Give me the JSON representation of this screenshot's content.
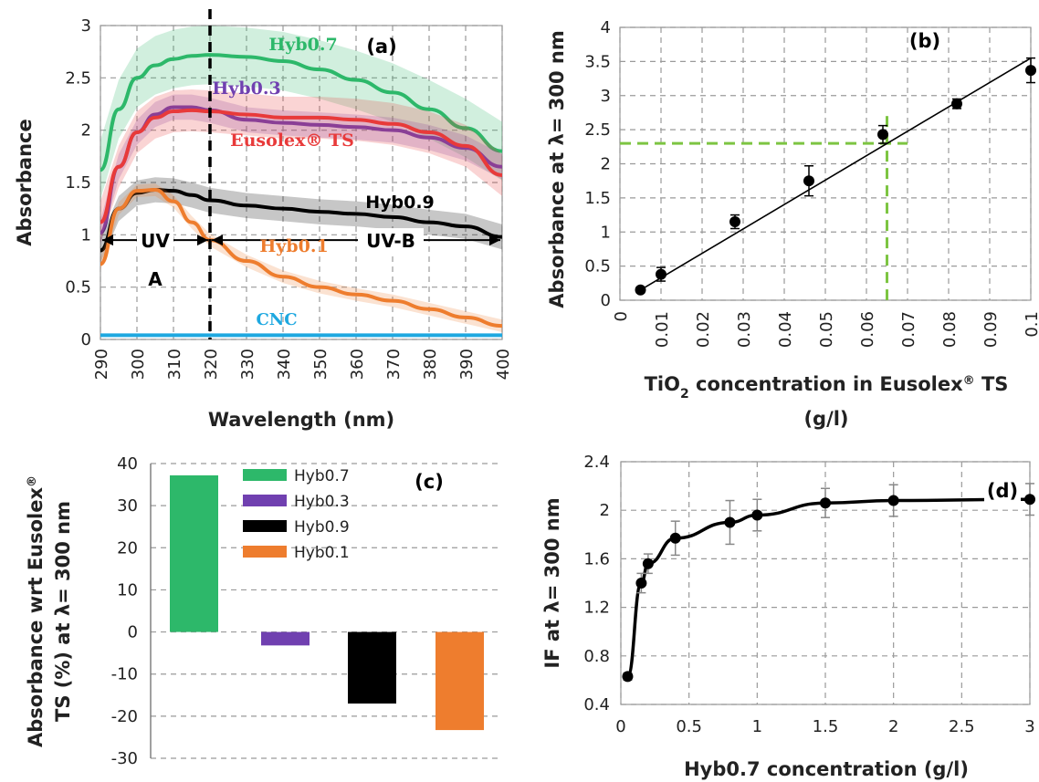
{
  "colors": {
    "hyb07": "#2db86a",
    "hyb03": "#7040b0",
    "eusolex": "#e83a3a",
    "hyb09": "#000000",
    "hyb01": "#ee7d2e",
    "cnc": "#1ea8e0",
    "guide": "#7dc542"
  },
  "chart_data": [
    {
      "panel": "(a)",
      "type": "line",
      "xlabel": "Wavelength (nm)",
      "ylabel": "Absorbance",
      "xlim": [
        290,
        400
      ],
      "ylim": [
        0,
        3
      ],
      "xticks": [
        "290",
        "300",
        "310",
        "320",
        "330",
        "340",
        "350",
        "360",
        "370",
        "380",
        "390",
        "400"
      ],
      "yticks": [
        "0",
        "0.5",
        "1",
        "1.5",
        "2",
        "2.5",
        "3"
      ],
      "grid": true,
      "x": [
        290,
        295,
        300,
        305,
        310,
        315,
        320,
        330,
        340,
        350,
        360,
        370,
        380,
        390,
        400
      ],
      "series": [
        {
          "name": "Hyb0.7",
          "color": "hyb07",
          "values": [
            1.62,
            2.2,
            2.5,
            2.62,
            2.68,
            2.71,
            2.72,
            2.7,
            2.66,
            2.58,
            2.48,
            2.36,
            2.2,
            2.02,
            1.8
          ]
        },
        {
          "name": "Hyb0.3",
          "color": "hyb03",
          "values": [
            1.02,
            1.65,
            1.98,
            2.15,
            2.22,
            2.22,
            2.19,
            2.1,
            2.07,
            2.05,
            2.03,
            2.0,
            1.93,
            1.83,
            1.65
          ]
        },
        {
          "name": "Eusolex® TS",
          "color": "eusolex",
          "values": [
            1.12,
            1.65,
            1.98,
            2.12,
            2.18,
            2.19,
            2.18,
            2.15,
            2.12,
            2.12,
            2.1,
            2.06,
            1.98,
            1.85,
            1.57
          ]
        },
        {
          "name": "Hyb0.9",
          "color": "hyb09",
          "values": [
            0.85,
            1.25,
            1.4,
            1.43,
            1.42,
            1.38,
            1.33,
            1.28,
            1.25,
            1.22,
            1.2,
            1.17,
            1.12,
            1.08,
            0.98
          ]
        },
        {
          "name": "Hyb0.1",
          "color": "hyb01",
          "values": [
            0.72,
            1.25,
            1.42,
            1.43,
            1.32,
            1.12,
            0.95,
            0.75,
            0.6,
            0.5,
            0.43,
            0.37,
            0.29,
            0.21,
            0.13
          ]
        },
        {
          "name": "CNC",
          "color": "cnc",
          "values": [
            0.04,
            0.04,
            0.04,
            0.04,
            0.04,
            0.04,
            0.04,
            0.04,
            0.04,
            0.04,
            0.04,
            0.04,
            0.04,
            0.04,
            0.04
          ]
        }
      ],
      "divider_x": 320,
      "annotations": {
        "uva_label": "UV",
        "uva_label2": "A",
        "uvb_label": "UV-B"
      }
    },
    {
      "panel": "(b)",
      "type": "scatter",
      "xlabel_main": "TiO",
      "xlabel_sub": "2",
      "xlabel_rest": " concentration in Eusolex",
      "xlabel_sup": "®",
      "xlabel_end": " TS",
      "xlabel_line2": "(g/l)",
      "ylabel": "Absorbance at λ= 300 nm",
      "xlim": [
        0,
        0.1
      ],
      "ylim": [
        0,
        4
      ],
      "xticks": [
        "0",
        "0.01",
        "0.02",
        "0.03",
        "0.04",
        "0.05",
        "0.06",
        "0.07",
        "0.08",
        "0.09",
        "0.1"
      ],
      "yticks": [
        "0",
        "0.5",
        "1",
        "1.5",
        "2",
        "2.5",
        "3",
        "3.5",
        "4"
      ],
      "points": [
        {
          "x": 0.005,
          "y": 0.15,
          "err": 0.04
        },
        {
          "x": 0.01,
          "y": 0.38,
          "err": 0.1
        },
        {
          "x": 0.028,
          "y": 1.15,
          "err": 0.1
        },
        {
          "x": 0.046,
          "y": 1.75,
          "err": 0.22
        },
        {
          "x": 0.064,
          "y": 2.43,
          "err": 0.13
        },
        {
          "x": 0.082,
          "y": 2.88,
          "err": 0.07
        },
        {
          "x": 0.1,
          "y": 3.37,
          "err": 0.18
        }
      ],
      "fit": {
        "x": [
          0.005,
          0.1
        ],
        "y": [
          0.15,
          3.55
        ]
      },
      "guide": {
        "x": 0.065,
        "y": 2.3
      }
    },
    {
      "panel": "(c)",
      "type": "bar",
      "ylabel_line1": "Absorbance wrt Eusolex",
      "ylabel_sup": "®",
      "ylabel_line2": "TS (%) at λ= 300 nm",
      "ylim": [
        -30,
        40
      ],
      "yticks": [
        "-30",
        "-20",
        "-10",
        "0",
        "10",
        "20",
        "30",
        "40"
      ],
      "categories": [
        "Hyb0.7",
        "Hyb0.3",
        "Hyb0.9",
        "Hyb0.1"
      ],
      "values": [
        37.2,
        -3.2,
        -17.0,
        -23.3
      ],
      "colors": [
        "hyb07",
        "hyb03",
        "hyb09",
        "hyb01"
      ]
    },
    {
      "panel": "(d)",
      "type": "line",
      "xlabel": "Hyb0.7 concentration (g/l)",
      "ylabel": "IF at λ= 300 nm",
      "xlim": [
        0,
        3
      ],
      "ylim": [
        0.4,
        2.4
      ],
      "xticks": [
        "0",
        "0.5",
        "1",
        "1.5",
        "2",
        "2.5",
        "3"
      ],
      "yticks": [
        "0.4",
        "0.8",
        "1.2",
        "1.6",
        "2",
        "2.4"
      ],
      "points": [
        {
          "x": 0.05,
          "y": 0.63,
          "err": 0.03
        },
        {
          "x": 0.15,
          "y": 1.4,
          "err": 0.08
        },
        {
          "x": 0.2,
          "y": 1.56,
          "err": 0.08
        },
        {
          "x": 0.4,
          "y": 1.77,
          "err": 0.14
        },
        {
          "x": 0.8,
          "y": 1.9,
          "err": 0.18
        },
        {
          "x": 1.0,
          "y": 1.96,
          "err": 0.13
        },
        {
          "x": 1.5,
          "y": 2.06,
          "err": 0.12
        },
        {
          "x": 2.0,
          "y": 2.08,
          "err": 0.13
        },
        {
          "x": 3.0,
          "y": 2.09,
          "err": 0.13
        }
      ]
    }
  ]
}
